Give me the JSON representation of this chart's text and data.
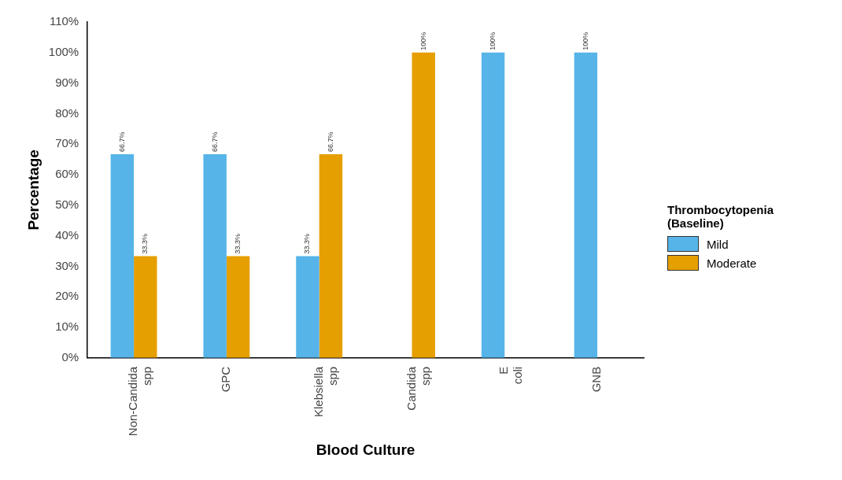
{
  "chart_data": {
    "type": "bar",
    "xlabel": "Blood Culture",
    "ylabel": "Percentage",
    "legend_title": "Thrombocytopenia (Baseline)",
    "legend": "right",
    "categories": [
      "Non-Candida spp",
      "GPC",
      "Klebsiella spp",
      "Candida spp",
      "E coli",
      "GNB"
    ],
    "series": [
      {
        "name": "Mild",
        "color": "#56b4e9",
        "values": [
          66.7,
          66.7,
          33.3,
          null,
          100,
          100
        ],
        "value_labels": [
          "66.7%",
          "66.7%",
          "33.3%",
          null,
          "100%",
          "100%"
        ]
      },
      {
        "name": "Moderate",
        "color": "#e69f00",
        "values": [
          33.3,
          33.3,
          66.7,
          100,
          null,
          null
        ],
        "value_labels": [
          "33.3%",
          "33.3%",
          "66.7%",
          "100%",
          null,
          null
        ]
      }
    ],
    "ylim": [
      0,
      110
    ],
    "yticks": [
      {
        "value": 0,
        "label": "0%"
      },
      {
        "value": 10,
        "label": "10%"
      },
      {
        "value": 20,
        "label": "20%"
      },
      {
        "value": 30,
        "label": "30%"
      },
      {
        "value": 40,
        "label": "40%"
      },
      {
        "value": 50,
        "label": "50%"
      },
      {
        "value": 60,
        "label": "60%"
      },
      {
        "value": 70,
        "label": "70%"
      },
      {
        "value": 80,
        "label": "80%"
      },
      {
        "value": 90,
        "label": "90%"
      },
      {
        "value": 100,
        "label": "100%"
      },
      {
        "value": 110,
        "label": "110%"
      }
    ],
    "grid": false
  }
}
